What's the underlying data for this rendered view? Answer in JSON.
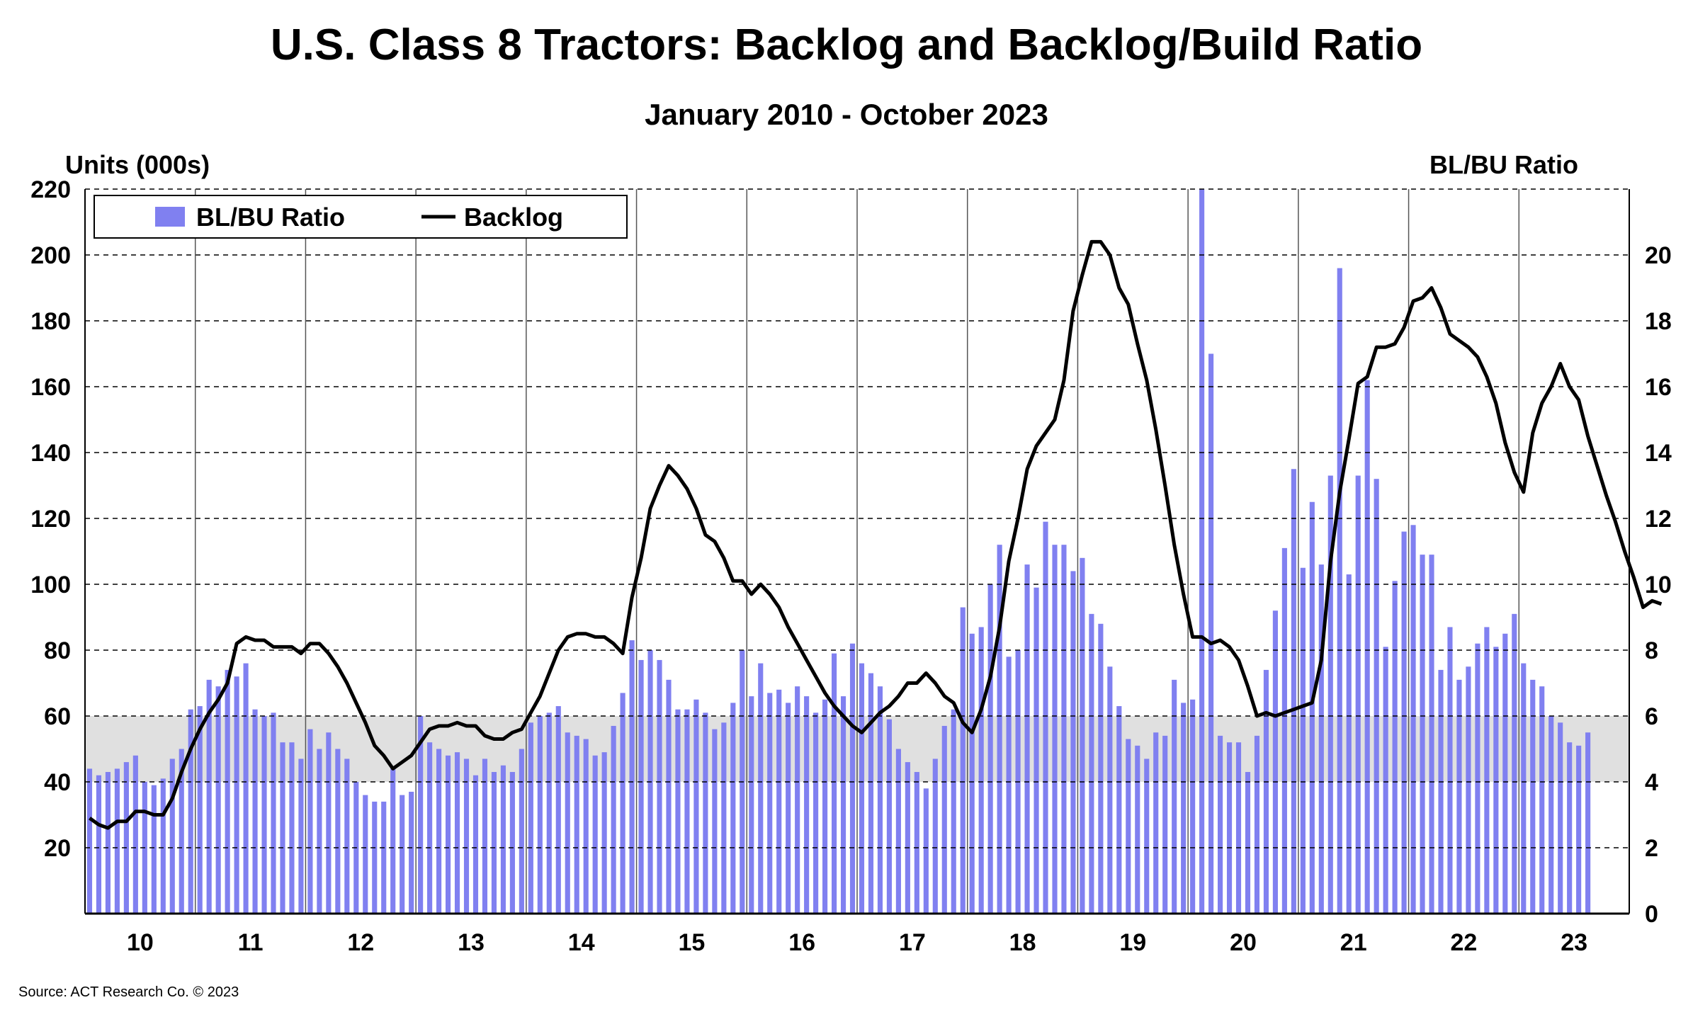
{
  "chart_data": {
    "type": "bar+line",
    "title": "U.S. Class 8 Tractors: Backlog and Backlog/Build Ratio",
    "subtitle": "January 2010 - October 2023",
    "ylabel_left": "Units (000s)",
    "ylabel_right": "BL/BU Ratio",
    "source": "Source: ACT Research Co. © 2023",
    "ylim_left": [
      0,
      220
    ],
    "ylim_right": [
      0,
      22
    ],
    "yticks_left": [
      "20",
      "40",
      "60",
      "80",
      "100",
      "120",
      "140",
      "160",
      "180",
      "200",
      "220"
    ],
    "yticks_right": [
      "0",
      "2",
      "4",
      "6",
      "8",
      "10",
      "12",
      "14",
      "16",
      "18",
      "20"
    ],
    "year_labels": [
      "10",
      "11",
      "12",
      "13",
      "14",
      "15",
      "16",
      "17",
      "18",
      "19",
      "20",
      "21",
      "22",
      "23"
    ],
    "shaded_band_ratio": [
      4,
      6
    ],
    "grid": true,
    "legend_position": "top-left",
    "colors": {
      "bars": "#8080f0",
      "line": "#000000",
      "band": "#e0e0e0"
    },
    "series": [
      {
        "name": "BL/BU Ratio",
        "axis": "right",
        "type": "bar",
        "values": [
          4.4,
          4.2,
          4.3,
          4.4,
          4.6,
          4.8,
          4.0,
          3.9,
          4.1,
          4.7,
          5.0,
          6.2,
          6.3,
          7.1,
          6.9,
          7.4,
          7.2,
          7.6,
          6.2,
          6.0,
          6.1,
          5.2,
          5.2,
          4.7,
          5.6,
          5.0,
          5.5,
          5.0,
          4.7,
          4.0,
          3.6,
          3.4,
          3.4,
          4.4,
          3.6,
          3.7,
          6.0,
          5.2,
          5.0,
          4.8,
          4.9,
          4.7,
          4.2,
          4.7,
          4.3,
          4.5,
          4.3,
          5.0,
          5.8,
          6.0,
          6.1,
          6.3,
          5.5,
          5.4,
          5.3,
          4.8,
          4.9,
          5.7,
          6.7,
          8.3,
          7.7,
          8.0,
          7.7,
          7.1,
          6.2,
          6.2,
          6.5,
          6.1,
          5.6,
          5.8,
          6.4,
          8.0,
          6.6,
          7.6,
          6.7,
          6.8,
          6.4,
          6.9,
          6.6,
          6.1,
          6.5,
          7.9,
          6.6,
          8.2,
          7.6,
          7.3,
          6.9,
          5.9,
          5.0,
          4.6,
          4.3,
          3.8,
          4.7,
          5.7,
          6.2,
          9.3,
          8.5,
          8.7,
          10.0,
          11.2,
          7.8,
          8.0,
          10.6,
          9.9,
          11.9,
          11.2,
          11.2,
          10.4,
          10.8,
          9.1,
          8.8,
          7.5,
          6.3,
          5.3,
          5.1,
          4.7,
          5.5,
          5.4,
          7.1,
          6.4,
          6.5,
          22.0,
          17.0,
          5.4,
          5.2,
          5.2,
          4.3,
          5.4,
          7.4,
          9.2,
          11.1,
          13.5,
          10.5,
          12.5,
          10.6,
          13.3,
          19.6,
          10.3,
          13.3,
          16.2,
          13.2,
          8.1,
          10.1,
          11.6,
          11.8,
          10.9,
          10.9,
          7.4,
          8.7,
          7.1,
          7.5,
          8.2,
          8.7,
          8.1,
          8.5,
          9.1,
          7.6,
          7.1,
          6.9,
          6.0,
          5.8,
          5.2,
          5.1,
          5.5
        ]
      },
      {
        "name": "Backlog",
        "axis": "left",
        "type": "line",
        "values": [
          29,
          27,
          26,
          28,
          28,
          31,
          31,
          30,
          30,
          35,
          43,
          50,
          56,
          61,
          65,
          70,
          82,
          84,
          83,
          83,
          81,
          81,
          81,
          79,
          82,
          82,
          79,
          75,
          70,
          64,
          58,
          51,
          48,
          44,
          46,
          48,
          52,
          56,
          57,
          57,
          58,
          57,
          57,
          54,
          53,
          53,
          55,
          56,
          61,
          66,
          73,
          80,
          84,
          85,
          85,
          84,
          84,
          82,
          79,
          96,
          108,
          123,
          130,
          136,
          133,
          129,
          123,
          115,
          113,
          108,
          101,
          101,
          97,
          100,
          97,
          93,
          87,
          82,
          77,
          72,
          67,
          63,
          60,
          57,
          55,
          58,
          61,
          63,
          66,
          70,
          70,
          73,
          70,
          66,
          64,
          58,
          55,
          62,
          72,
          87,
          107,
          120,
          135,
          142,
          146,
          150,
          162,
          183,
          194,
          204,
          204,
          200,
          190,
          185,
          173,
          162,
          147,
          130,
          112,
          97,
          84,
          84,
          82,
          83,
          81,
          77,
          69,
          60,
          61,
          60,
          61,
          62,
          63,
          64,
          77,
          107,
          128,
          144,
          161,
          163,
          172,
          172,
          173,
          178,
          186,
          187,
          190,
          184,
          176,
          174,
          172,
          169,
          163,
          155,
          143,
          134,
          128,
          146,
          155,
          160,
          167,
          160,
          156,
          145,
          136,
          127,
          119,
          110,
          102,
          93,
          95,
          94
        ]
      }
    ]
  }
}
